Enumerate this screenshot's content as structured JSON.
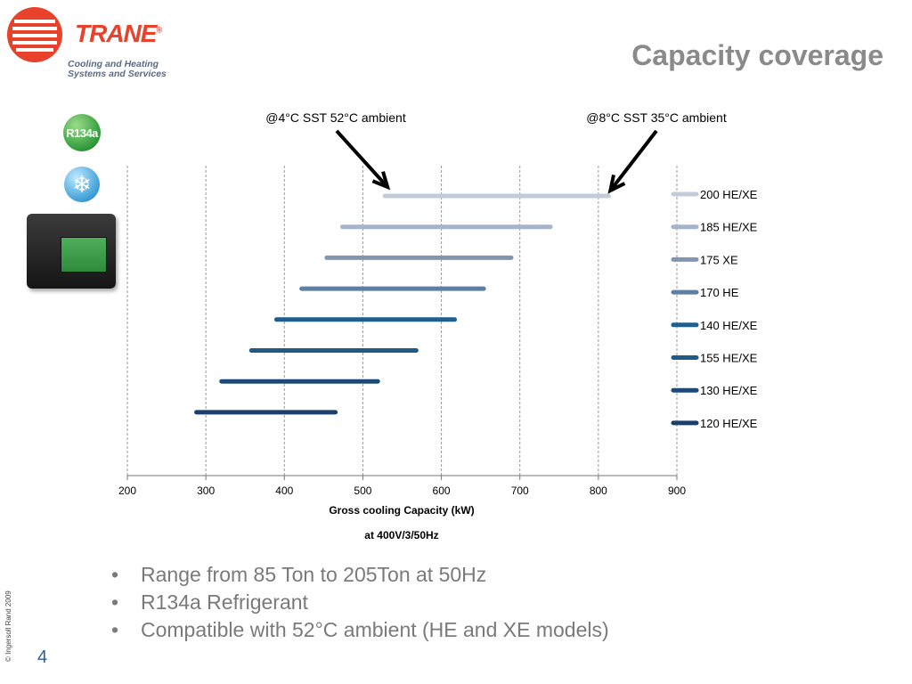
{
  "brand": {
    "name": "TRANE",
    "tagline_line1": "Cooling and Heating",
    "tagline_line2": "Systems and Services",
    "reg_mark": "®"
  },
  "title": "Capacity coverage",
  "badges": {
    "refrigerant": "R134a",
    "snowflake_icon": "snowflake-icon"
  },
  "chart_data": {
    "type": "bar",
    "orientation": "horizontal-range",
    "xlabel": "Gross cooling Capacity (kW)",
    "xlabel_sub": "at 400V/3/50Hz",
    "xlim": [
      200,
      900
    ],
    "xticks": [
      200,
      300,
      400,
      500,
      600,
      700,
      800,
      900
    ],
    "grid": "vertical-dashed",
    "legend": "right",
    "annotations": [
      {
        "text": "@4°C SST 52°C ambient",
        "points_to": "200 HE/XE start"
      },
      {
        "text": "@8°C SST 35°C ambient",
        "points_to": "200 HE/XE end"
      }
    ],
    "series": [
      {
        "name": "200 HE/XE",
        "start": 528,
        "end": 813,
        "color": "#c2ccd9"
      },
      {
        "name": "185 HE/XE",
        "start": 474,
        "end": 739,
        "color": "#a6b4c8"
      },
      {
        "name": "175 XE",
        "start": 454,
        "end": 689,
        "color": "#8296b1"
      },
      {
        "name": "170 HE",
        "start": 422,
        "end": 654,
        "color": "#5f7ea3"
      },
      {
        "name": "140 HE/XE",
        "start": 390,
        "end": 617,
        "color": "#1f5f8f"
      },
      {
        "name": "155 HE/XE",
        "start": 358,
        "end": 568,
        "color": "#1f5a88"
      },
      {
        "name": "130 HE/XE",
        "start": 320,
        "end": 519,
        "color": "#1b4a78"
      },
      {
        "name": "120 HE/XE",
        "start": 288,
        "end": 465,
        "color": "#1a3f6b"
      }
    ]
  },
  "bullets": [
    "Range from 85 Ton to 205Ton at 50Hz",
    "R134a Refrigerant",
    "Compatible with 52°C ambient (HE and XE models)"
  ],
  "copyright": "© Ingersoll Rand 2009",
  "page_number": "4"
}
